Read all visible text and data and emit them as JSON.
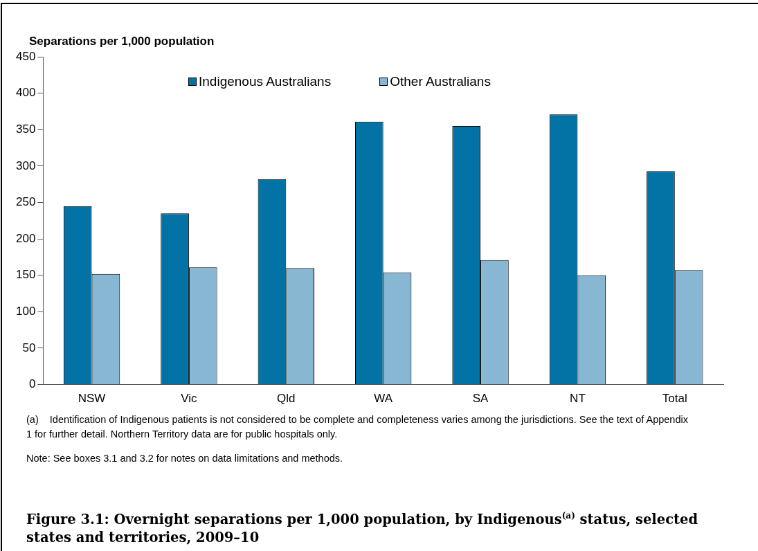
{
  "chart_data": {
    "type": "bar",
    "title": "Figure 3.1: Overnight separations per 1,000 population, by Indigenous$^{(a)}$ status, selected states and territories, 2009–10",
    "ylabel": "Separations per 1,000 population",
    "categories": [
      "NSW",
      "Vic",
      "Qld",
      "WA",
      "SA",
      "NT",
      "Total"
    ],
    "series": [
      {
        "name": "Indigenous Australians",
        "color": "#0373a6",
        "values": [
          245,
          235,
          282,
          361,
          355,
          371,
          293
        ]
      },
      {
        "name": "Other Australians",
        "color": "#88b7d4",
        "values": [
          152,
          161,
          160,
          154,
          171,
          150,
          157
        ]
      }
    ],
    "ylim": [
      0,
      450
    ],
    "yticks": [
      0,
      50,
      100,
      150,
      200,
      250,
      300,
      350,
      400,
      450
    ],
    "grid": false,
    "legend": "top",
    "annotations": [
      "(a)\tIdentification of Indigenous patients is not considered to be complete and completeness varies among the jurisdictions. See the text of Appendix 1 for further detail. Northern Territory data are for public hospitals only.",
      "Note: See boxes 3.1 and 3.2 for notes on data limitations and methods."
    ]
  }
}
